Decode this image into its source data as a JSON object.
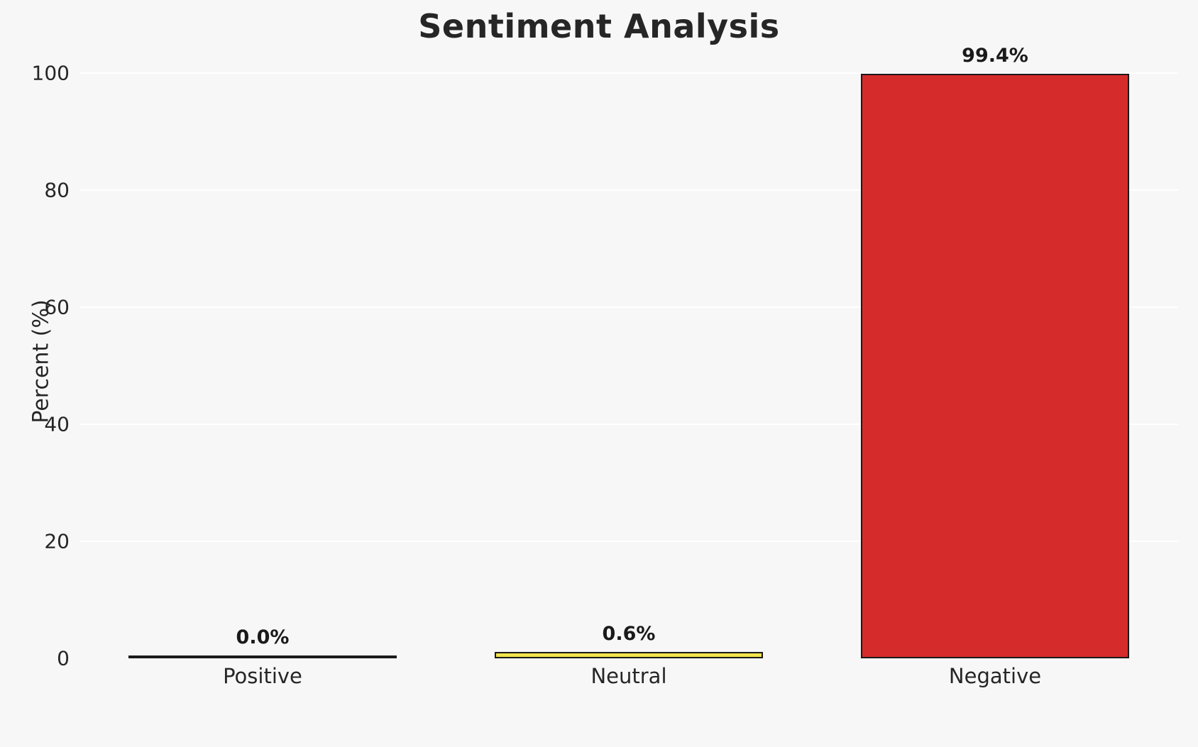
{
  "chart_data": {
    "type": "bar",
    "title": "Sentiment Analysis",
    "xlabel": "",
    "ylabel": "Percent (%)",
    "categories": [
      "Positive",
      "Neutral",
      "Negative"
    ],
    "values": [
      0.0,
      0.6,
      99.4
    ],
    "value_labels": [
      "0.0%",
      "0.6%",
      "99.4%"
    ],
    "ylim": [
      0,
      100
    ],
    "yticks": [
      0,
      20,
      40,
      60,
      80,
      100
    ],
    "grid": true,
    "legend": "none",
    "bar_colors": [
      "#bdbdbd",
      "#f2e34c",
      "#d62b2b"
    ],
    "bar_edge_color": "#1a1a1a",
    "background_color": "#f7f7f7",
    "gridline_color": "#ffffff"
  }
}
